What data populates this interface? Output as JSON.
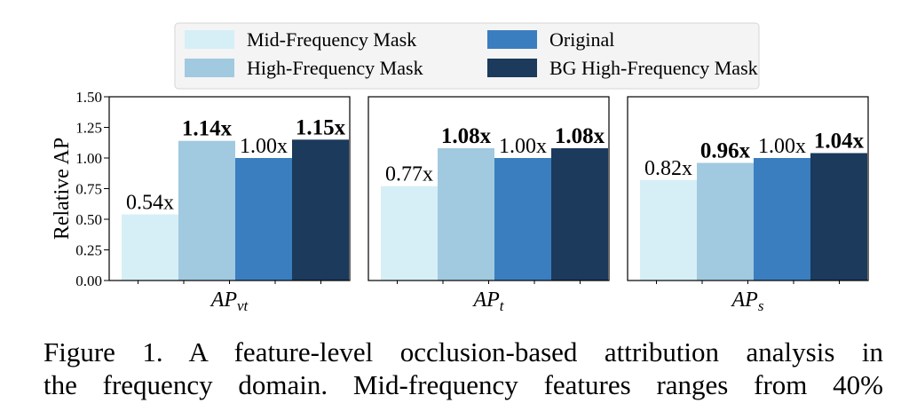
{
  "chart_data": {
    "type": "bar",
    "ylabel": "Relative AP",
    "ylim": [
      0,
      1.5
    ],
    "yticks": [
      "0.00",
      "0.25",
      "0.50",
      "0.75",
      "1.00",
      "1.25",
      "1.50"
    ],
    "legend": {
      "placement": "top-center",
      "entries": [
        "Mid-Frequency Mask",
        "High-Frequency Mask",
        "Original",
        "BG High-Frequency Mask"
      ]
    },
    "series": [
      {
        "name": "Mid-Frequency Mask",
        "color": "#d6eff6"
      },
      {
        "name": "High-Frequency Mask",
        "color": "#a1c9e0"
      },
      {
        "name": "Original",
        "color": "#3a7ebf"
      },
      {
        "name": "BG High-Frequency Mask",
        "color": "#1b3a5c"
      }
    ],
    "panels": [
      {
        "xlabel": "AP",
        "xlabel_sub": "vt",
        "values": [
          0.54,
          1.14,
          1.0,
          1.15
        ],
        "labels": [
          "0.54x",
          "1.14x",
          "1.00x",
          "1.15x"
        ],
        "bold": [
          false,
          true,
          false,
          true
        ]
      },
      {
        "xlabel": "AP",
        "xlabel_sub": "t",
        "values": [
          0.77,
          1.08,
          1.0,
          1.08
        ],
        "labels": [
          "0.77x",
          "1.08x",
          "1.00x",
          "1.08x"
        ],
        "bold": [
          false,
          true,
          false,
          true
        ]
      },
      {
        "xlabel": "AP",
        "xlabel_sub": "s",
        "values": [
          0.82,
          0.96,
          1.0,
          1.04
        ],
        "labels": [
          "0.82x",
          "0.96x",
          "1.00x",
          "1.04x"
        ],
        "bold": [
          false,
          true,
          false,
          true
        ]
      }
    ]
  },
  "caption": {
    "line1": "Figure 1.  A feature-level occlusion-based attribution analysis in",
    "line2": "the frequency domain. Mid-frequency features ranges from 40%"
  }
}
